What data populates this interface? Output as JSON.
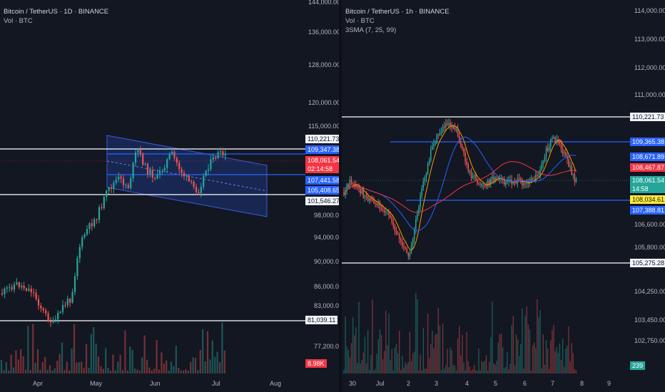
{
  "left": {
    "title": "Bitcoin / TetherUS · 1D · BINANCE",
    "volume_label": "Vol · BTC",
    "axis_prices": [
      "144,000.00",
      "136,000.00",
      "128,000.00",
      "120,000.00",
      "115,000.00",
      "98,000.00",
      "94,000.00",
      "90,000.00",
      "86,000.00",
      "83,000.00",
      "77,200.00"
    ],
    "months": [
      "Apr",
      "May",
      "Jun",
      "Jul",
      "Aug"
    ],
    "tags": {
      "level_1": "110,221.73",
      "level_2": "109,347.38",
      "current_price": "108,061.54",
      "countdown": "02:14:58",
      "level_3": "107,441.58",
      "level_4": "105,408.65",
      "level_5": "101,546.27",
      "level_6": "81,039.11",
      "volume": "8.98K"
    }
  },
  "right": {
    "title": "Bitcoin / TetherUS · 1h · BINANCE",
    "volume_label": "Vol · BTC",
    "sma_label": "3SMA (7, 25, 99)",
    "axis_prices": [
      "114,000.00",
      "113,000.00",
      "112,000.00",
      "111,000.00",
      "106,600.00",
      "105,800.00",
      "104,250.00",
      "103,450.00",
      "102,750.00"
    ],
    "days": [
      "30",
      "Jul",
      "2",
      "3",
      "4",
      "5",
      "6",
      "7",
      "8",
      "9"
    ],
    "tags": {
      "level_1": "110,221.73",
      "level_2": "109,365.38",
      "level_3": "108,671.89",
      "sma_level": "108,467.87",
      "current_price": "108,061.54",
      "countdown": "14:58",
      "level_4": "108,034.61",
      "level_5": "107,388.81",
      "level_6": "105,275.28",
      "volume": "239"
    }
  },
  "colors": {
    "up": "#26a69a",
    "down": "#ef5350",
    "hline": "#ffffff",
    "blue_line": "#2962ff",
    "channel": "#3b5bdb",
    "sma_fast": "#f23645",
    "sma_mid": "#2962ff",
    "sma_slow": "#f23645"
  }
}
